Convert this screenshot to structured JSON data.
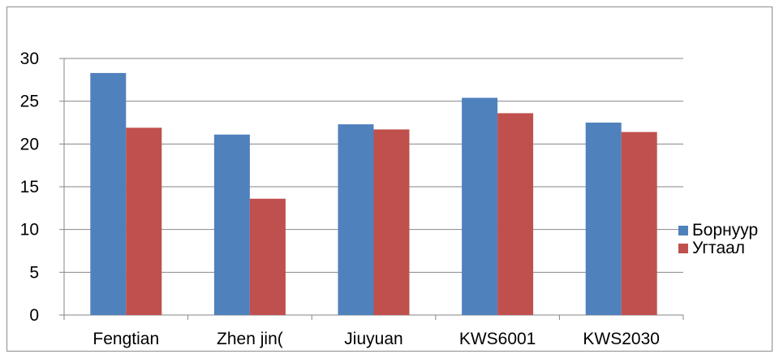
{
  "chart_data": {
    "type": "bar",
    "title": "",
    "xlabel": "",
    "ylabel": "",
    "categories": [
      "Fengtian",
      "Zhen jin(",
      "Jiuyuan",
      "KWS6001",
      "KWS2030"
    ],
    "series": [
      {
        "name": "Борнуур",
        "color": "#4f81bd",
        "values": [
          28.3,
          21.1,
          22.3,
          25.4,
          22.5
        ]
      },
      {
        "name": "Угтаал",
        "color": "#c0504d",
        "values": [
          21.9,
          13.6,
          21.7,
          23.6,
          21.4
        ]
      }
    ],
    "ylim": [
      0,
      30
    ],
    "yticks": [
      "0",
      "5",
      "10",
      "15",
      "20",
      "25",
      "30"
    ],
    "grid": true,
    "legend_position": "right"
  }
}
